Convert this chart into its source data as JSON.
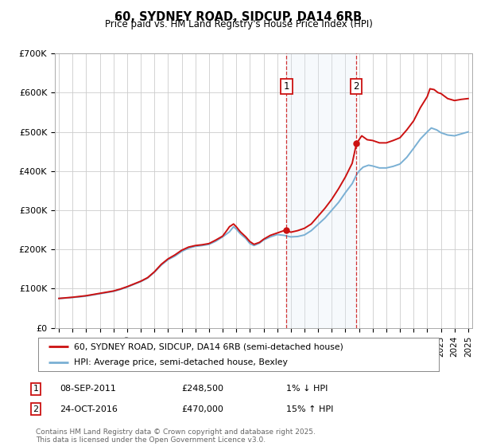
{
  "title": "60, SYDNEY ROAD, SIDCUP, DA14 6RB",
  "subtitle": "Price paid vs. HM Land Registry's House Price Index (HPI)",
  "background_color": "#ffffff",
  "plot_bg_color": "#ffffff",
  "grid_color": "#cccccc",
  "sale1_date": "08-SEP-2011",
  "sale1_price": 248500,
  "sale1_label": "£248,500",
  "sale1_hpi": "1% ↓ HPI",
  "sale2_date": "24-OCT-2016",
  "sale2_price": 470000,
  "sale2_label": "£470,000",
  "sale2_hpi": "15% ↑ HPI",
  "legend_line1": "60, SYDNEY ROAD, SIDCUP, DA14 6RB (semi-detached house)",
  "legend_line2": "HPI: Average price, semi-detached house, Bexley",
  "footer": "Contains HM Land Registry data © Crown copyright and database right 2025.\nThis data is licensed under the Open Government Licence v3.0.",
  "hpi_color": "#7ab0d4",
  "price_color": "#cc1111",
  "shade_color": "#dce8f5",
  "marker_box_color": "#cc1111",
  "ylim_max": 700000,
  "ylim_min": 0,
  "x_start_year": 1995,
  "x_end_year": 2025,
  "sale1_x": 2011.69,
  "sale2_x": 2016.81,
  "hpi_data": [
    [
      1995.0,
      75000
    ],
    [
      1995.5,
      76000
    ],
    [
      1996.0,
      77500
    ],
    [
      1996.5,
      79000
    ],
    [
      1997.0,
      81000
    ],
    [
      1997.5,
      84000
    ],
    [
      1998.0,
      87000
    ],
    [
      1998.5,
      90000
    ],
    [
      1999.0,
      93000
    ],
    [
      1999.5,
      98000
    ],
    [
      2000.0,
      104000
    ],
    [
      2000.5,
      111000
    ],
    [
      2001.0,
      118000
    ],
    [
      2001.5,
      127000
    ],
    [
      2002.0,
      142000
    ],
    [
      2002.5,
      160000
    ],
    [
      2003.0,
      174000
    ],
    [
      2003.5,
      183000
    ],
    [
      2004.0,
      195000
    ],
    [
      2004.5,
      203000
    ],
    [
      2005.0,
      208000
    ],
    [
      2005.5,
      210000
    ],
    [
      2006.0,
      213000
    ],
    [
      2006.5,
      221000
    ],
    [
      2007.0,
      232000
    ],
    [
      2007.5,
      245000
    ],
    [
      2007.8,
      258000
    ],
    [
      2008.0,
      252000
    ],
    [
      2008.3,
      240000
    ],
    [
      2008.7,
      228000
    ],
    [
      2009.0,
      215000
    ],
    [
      2009.3,
      210000
    ],
    [
      2009.7,
      216000
    ],
    [
      2010.0,
      224000
    ],
    [
      2010.5,
      232000
    ],
    [
      2011.0,
      238000
    ],
    [
      2011.5,
      236000
    ],
    [
      2012.0,
      232000
    ],
    [
      2012.5,
      233000
    ],
    [
      2013.0,
      237000
    ],
    [
      2013.5,
      248000
    ],
    [
      2014.0,
      264000
    ],
    [
      2014.5,
      280000
    ],
    [
      2015.0,
      300000
    ],
    [
      2015.5,
      320000
    ],
    [
      2016.0,
      345000
    ],
    [
      2016.5,
      368000
    ],
    [
      2016.81,
      390000
    ],
    [
      2017.0,
      400000
    ],
    [
      2017.3,
      410000
    ],
    [
      2017.7,
      415000
    ],
    [
      2018.0,
      413000
    ],
    [
      2018.5,
      408000
    ],
    [
      2019.0,
      408000
    ],
    [
      2019.5,
      412000
    ],
    [
      2020.0,
      418000
    ],
    [
      2020.5,
      435000
    ],
    [
      2021.0,
      458000
    ],
    [
      2021.5,
      482000
    ],
    [
      2022.0,
      500000
    ],
    [
      2022.3,
      510000
    ],
    [
      2022.7,
      505000
    ],
    [
      2023.0,
      498000
    ],
    [
      2023.5,
      492000
    ],
    [
      2024.0,
      490000
    ],
    [
      2024.5,
      495000
    ],
    [
      2025.0,
      500000
    ]
  ],
  "price_data": [
    [
      1995.0,
      75000
    ],
    [
      1995.5,
      76500
    ],
    [
      1996.0,
      78000
    ],
    [
      1996.5,
      80000
    ],
    [
      1997.0,
      82000
    ],
    [
      1997.5,
      85000
    ],
    [
      1998.0,
      88000
    ],
    [
      1998.5,
      91000
    ],
    [
      1999.0,
      94000
    ],
    [
      1999.5,
      99000
    ],
    [
      2000.0,
      105000
    ],
    [
      2000.5,
      112000
    ],
    [
      2001.0,
      119000
    ],
    [
      2001.5,
      128000
    ],
    [
      2002.0,
      143000
    ],
    [
      2002.5,
      162000
    ],
    [
      2003.0,
      176000
    ],
    [
      2003.5,
      186000
    ],
    [
      2004.0,
      198000
    ],
    [
      2004.5,
      206000
    ],
    [
      2005.0,
      210000
    ],
    [
      2005.5,
      212000
    ],
    [
      2006.0,
      215000
    ],
    [
      2006.5,
      224000
    ],
    [
      2007.0,
      234000
    ],
    [
      2007.3,
      248000
    ],
    [
      2007.5,
      258000
    ],
    [
      2007.8,
      265000
    ],
    [
      2008.0,
      258000
    ],
    [
      2008.3,
      245000
    ],
    [
      2008.7,
      232000
    ],
    [
      2009.0,
      220000
    ],
    [
      2009.3,
      213000
    ],
    [
      2009.7,
      218000
    ],
    [
      2010.0,
      226000
    ],
    [
      2010.5,
      236000
    ],
    [
      2011.0,
      242000
    ],
    [
      2011.5,
      248000
    ],
    [
      2011.69,
      248500
    ],
    [
      2012.0,
      244000
    ],
    [
      2012.5,
      248000
    ],
    [
      2013.0,
      254000
    ],
    [
      2013.5,
      265000
    ],
    [
      2014.0,
      285000
    ],
    [
      2014.5,
      305000
    ],
    [
      2015.0,
      328000
    ],
    [
      2015.5,
      355000
    ],
    [
      2016.0,
      385000
    ],
    [
      2016.5,
      420000
    ],
    [
      2016.81,
      470000
    ],
    [
      2017.0,
      480000
    ],
    [
      2017.2,
      490000
    ],
    [
      2017.4,
      485000
    ],
    [
      2017.6,
      480000
    ],
    [
      2018.0,
      478000
    ],
    [
      2018.5,
      472000
    ],
    [
      2019.0,
      472000
    ],
    [
      2019.5,
      478000
    ],
    [
      2020.0,
      485000
    ],
    [
      2020.5,
      505000
    ],
    [
      2021.0,
      528000
    ],
    [
      2021.5,
      562000
    ],
    [
      2022.0,
      590000
    ],
    [
      2022.2,
      610000
    ],
    [
      2022.5,
      608000
    ],
    [
      2022.8,
      600000
    ],
    [
      2023.0,
      598000
    ],
    [
      2023.5,
      585000
    ],
    [
      2024.0,
      580000
    ],
    [
      2024.5,
      583000
    ],
    [
      2025.0,
      585000
    ]
  ]
}
